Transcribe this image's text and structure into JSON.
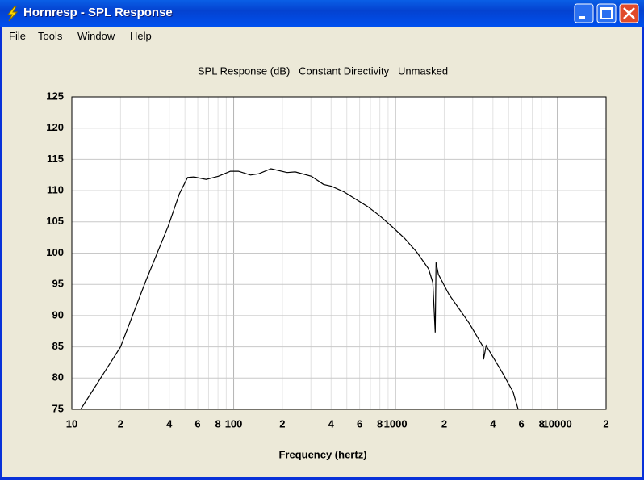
{
  "window": {
    "title": "Hornresp - SPL Response",
    "menu": [
      "File",
      "Tools",
      "Window",
      "Help"
    ]
  },
  "chart_data": {
    "type": "line",
    "title": "SPL Response (dB)   Constant Directivity   Unmasked",
    "x_label": "Frequency (hertz)",
    "xscale": "log",
    "grid": true,
    "xlim": [
      10,
      20000
    ],
    "xticks": [
      10,
      {
        "value": 20,
        "label": "2"
      },
      {
        "value": 40,
        "label": "4"
      },
      {
        "value": 60,
        "label": "6"
      },
      {
        "value": 80,
        "label": "8"
      },
      100,
      {
        "value": 200,
        "label": "2"
      },
      {
        "value": 400,
        "label": "4"
      },
      {
        "value": 600,
        "label": "6"
      },
      {
        "value": 800,
        "label": "8"
      },
      1000,
      {
        "value": 2000,
        "label": "2"
      },
      {
        "value": 4000,
        "label": "4"
      },
      {
        "value": 6000,
        "label": "6"
      },
      {
        "value": 8000,
        "label": "8"
      },
      10000,
      {
        "value": 20000,
        "label": "2"
      }
    ],
    "xgrid_minor": [
      30,
      50,
      70,
      90,
      300,
      500,
      700,
      900,
      3000,
      5000,
      7000,
      9000
    ],
    "ylim": [
      75,
      125
    ],
    "yticks": [
      75,
      80,
      85,
      90,
      95,
      100,
      105,
      110,
      115,
      120,
      125
    ],
    "series": [
      {
        "color": "#000000",
        "x": [
          11.35,
          20,
          28.5,
          39.4,
          46.2,
          51.9,
          56.9,
          67.6,
          80.4,
          95.5,
          107,
          127,
          143,
          170,
          214,
          240,
          302,
          359,
          403,
          480,
          570,
          677,
          805,
          955,
          1135,
          1350,
          1600,
          1700,
          1760,
          1780,
          1840,
          2140,
          2850,
          3480,
          3500,
          3630,
          4520,
          5320,
          5730
        ],
        "values": [
          75,
          85,
          95.4,
          104.3,
          109.5,
          112.1,
          112.2,
          111.8,
          112.3,
          113.1,
          113.1,
          112.5,
          112.7,
          113.5,
          112.9,
          113.0,
          112.3,
          111.0,
          110.7,
          109.8,
          108.6,
          107.4,
          105.9,
          104.2,
          102.4,
          100.2,
          97.5,
          95.3,
          87.3,
          98.5,
          96.6,
          93.4,
          88.8,
          85.0,
          83.0,
          85.2,
          81.1,
          77.8,
          75
        ]
      }
    ]
  }
}
